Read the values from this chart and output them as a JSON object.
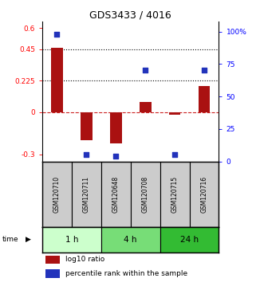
{
  "title": "GDS3433 / 4016",
  "samples": [
    "GSM120710",
    "GSM120711",
    "GSM120648",
    "GSM120708",
    "GSM120715",
    "GSM120716"
  ],
  "log10_ratio": [
    0.46,
    -0.2,
    -0.22,
    0.075,
    -0.02,
    0.19
  ],
  "percentile_rank": [
    98,
    5,
    4,
    70,
    5,
    70
  ],
  "time_groups": [
    {
      "label": "1 h",
      "start": 0,
      "end": 2,
      "color": "#ccffcc"
    },
    {
      "label": "4 h",
      "start": 2,
      "end": 4,
      "color": "#77dd77"
    },
    {
      "label": "24 h",
      "start": 4,
      "end": 6,
      "color": "#33bb33"
    }
  ],
  "ylim_left": [
    -0.35,
    0.65
  ],
  "ylim_right": [
    0,
    108
  ],
  "yticks_left": [
    -0.3,
    0,
    0.225,
    0.45,
    0.6
  ],
  "yticks_right": [
    0,
    25,
    50,
    75,
    100
  ],
  "ytick_labels_left": [
    "-0.3",
    "0",
    "0.225",
    "0.45",
    "0.6"
  ],
  "ytick_labels_right": [
    "0",
    "25",
    "50",
    "75",
    "100%"
  ],
  "hlines_dotted": [
    0.45,
    0.225
  ],
  "hline_dashed": 0,
  "bar_color_red": "#aa1111",
  "bar_color_blue": "#2233bb",
  "bar_width": 0.4,
  "dot_size": 18,
  "bg_color": "#ffffff"
}
